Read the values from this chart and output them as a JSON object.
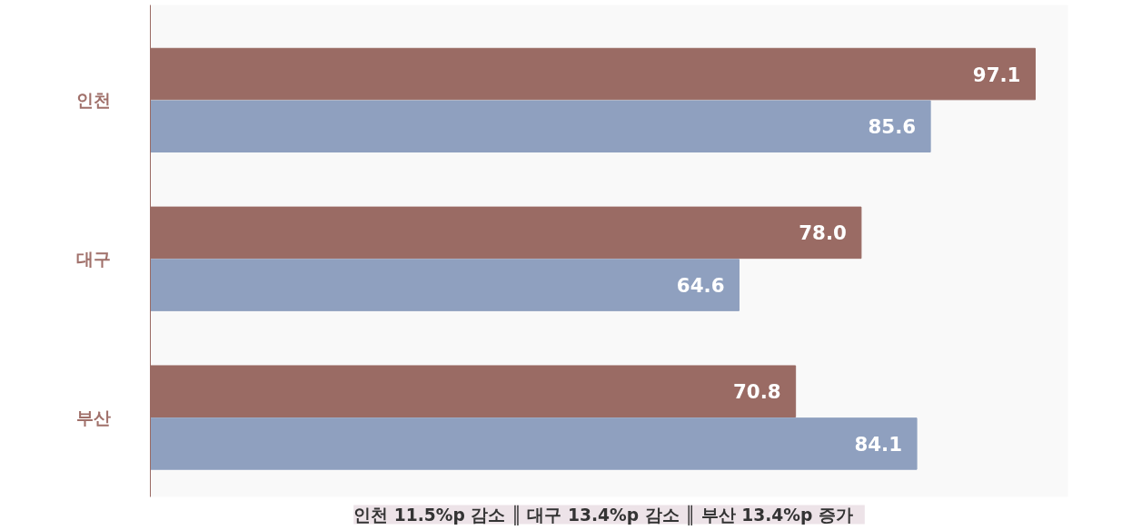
{
  "chart_data": {
    "type": "bar",
    "orientation": "horizontal",
    "categories": [
      "인천",
      "대구",
      "부산"
    ],
    "series": [
      {
        "color": "#9a6b64",
        "values": [
          97.1,
          78.0,
          70.8
        ],
        "value_labels": [
          "97.1",
          "78.0",
          "70.8"
        ]
      },
      {
        "color": "#8fa0bf",
        "values": [
          85.6,
          64.6,
          84.1
        ],
        "value_labels": [
          "85.6",
          "64.6",
          "84.1"
        ]
      }
    ],
    "grid": false,
    "tick_labels": "y",
    "annotations": [
      "인천 11.5%p 감소 ║  대구 13.4%p 감소  ║ 부산 13.4%p 증가"
    ]
  }
}
